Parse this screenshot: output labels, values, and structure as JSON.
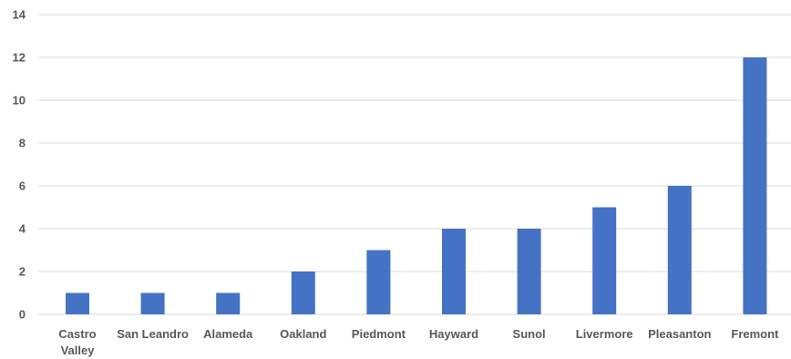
{
  "chart_data": {
    "type": "bar",
    "title": "",
    "xlabel": "",
    "ylabel": "",
    "categories": [
      "Castro Valley",
      "San Leandro",
      "Alameda",
      "Oakland",
      "Piedmont",
      "Hayward",
      "Sunol",
      "Livermore",
      "Pleasanton",
      "Fremont"
    ],
    "category_lines": [
      [
        "Castro",
        "Valley"
      ],
      [
        "San Leandro"
      ],
      [
        "Alameda"
      ],
      [
        "Oakland"
      ],
      [
        "Piedmont"
      ],
      [
        "Hayward"
      ],
      [
        "Sunol"
      ],
      [
        "Livermore"
      ],
      [
        "Pleasanton"
      ],
      [
        "Fremont"
      ]
    ],
    "values": [
      1,
      1,
      1,
      2,
      3,
      4,
      4,
      5,
      6,
      12
    ],
    "ylim": [
      0,
      14
    ],
    "yticks": [
      0,
      2,
      4,
      6,
      8,
      10,
      12,
      14
    ],
    "grid": true,
    "legend": "none",
    "colors": {
      "bar": "#4472c4",
      "grid": "#d9d9d9",
      "text": "#595959"
    }
  }
}
